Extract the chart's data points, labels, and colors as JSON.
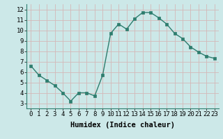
{
  "x": [
    0,
    1,
    2,
    3,
    4,
    5,
    6,
    7,
    8,
    9,
    10,
    11,
    12,
    13,
    14,
    15,
    16,
    17,
    18,
    19,
    20,
    21,
    22,
    23
  ],
  "y": [
    6.6,
    5.7,
    5.2,
    4.7,
    4.0,
    3.2,
    4.0,
    4.0,
    3.7,
    5.7,
    9.7,
    10.6,
    10.1,
    11.1,
    11.7,
    11.7,
    11.2,
    10.6,
    9.7,
    9.2,
    8.4,
    7.9,
    7.5,
    7.3
  ],
  "line_color": "#2e7d6e",
  "marker": "s",
  "marker_size": 2.5,
  "bg_color": "#cce8e8",
  "grid_color": "#b0d0d0",
  "xlabel": "Humidex (Indice chaleur)",
  "xlim": [
    -0.5,
    23.5
  ],
  "ylim": [
    2.5,
    12.5
  ],
  "xticks": [
    0,
    1,
    2,
    3,
    4,
    5,
    6,
    7,
    8,
    9,
    10,
    11,
    12,
    13,
    14,
    15,
    16,
    17,
    18,
    19,
    20,
    21,
    22,
    23
  ],
  "yticks": [
    3,
    4,
    5,
    6,
    7,
    8,
    9,
    10,
    11,
    12
  ],
  "xlabel_fontsize": 7.5,
  "tick_fontsize": 6.5
}
